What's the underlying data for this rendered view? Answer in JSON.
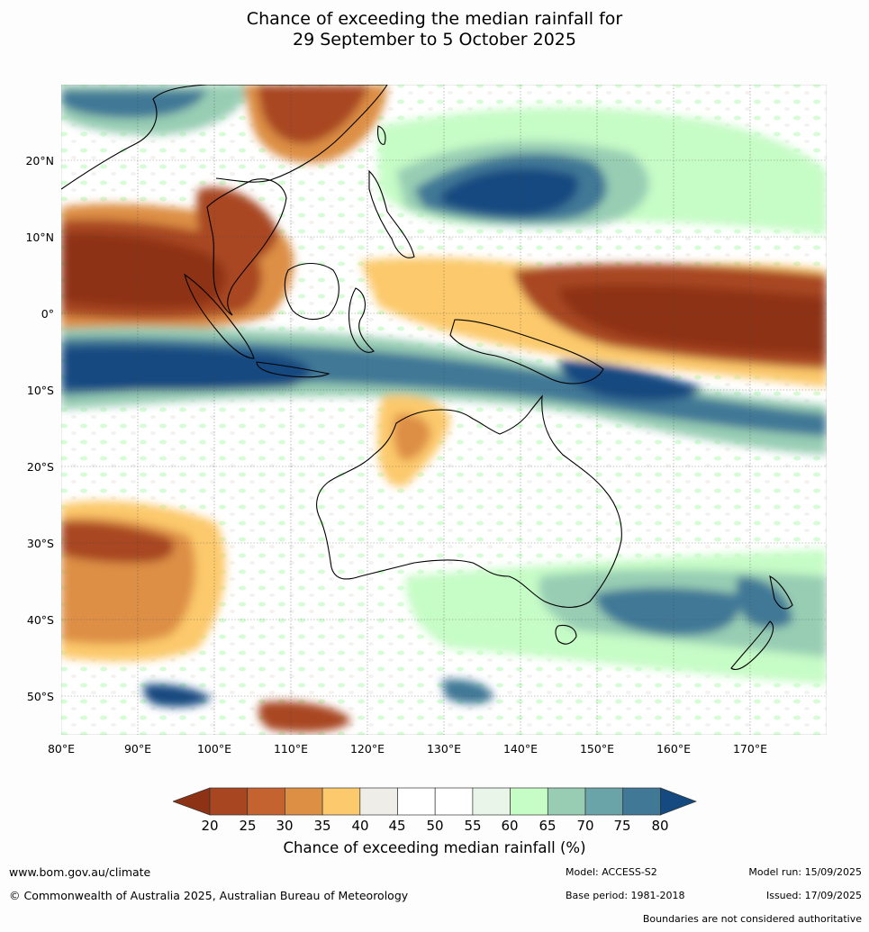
{
  "title": {
    "line1": "Chance of exceeding the median rainfall for",
    "line2": "29 September to 5 October 2025"
  },
  "lat_ticks": [
    "20°N",
    "10°N",
    "0°",
    "10°S",
    "20°S",
    "30°S",
    "40°S",
    "50°S"
  ],
  "lon_ticks": [
    "80°E",
    "90°E",
    "100°E",
    "110°E",
    "120°E",
    "130°E",
    "140°E",
    "150°E",
    "160°E",
    "170°E"
  ],
  "colorbar": {
    "labels": [
      "20",
      "25",
      "30",
      "35",
      "40",
      "45",
      "50",
      "55",
      "60",
      "65",
      "70",
      "75",
      "80"
    ],
    "title": "Chance of exceeding median rainfall (%)",
    "colors": {
      "below_20": "#8e3216",
      "20_25": "#a84622",
      "25_30": "#c46330",
      "30_35": "#dd8f44",
      "35_40": "#fcc96c",
      "40_45": "#efede8",
      "45_50": "#ffffff",
      "50_55": "#ffffff",
      "55_60": "#e9f5e8",
      "60_65": "#c6fcc6",
      "65_70": "#98cdb4",
      "70_75": "#6aa3a8",
      "75_80": "#417896",
      "above_80": "#154a80"
    }
  },
  "footer": {
    "website": "www.bom.gov.au/climate",
    "copyright": "© Commonwealth of Australia 2025, Australian Bureau of Meteorology",
    "model": "Model: ACCESS-S2",
    "base_period": "Base period: 1981-2018",
    "model_run": "Model run: 15/09/2025",
    "issued": "Issued: 17/09/2025",
    "disclaimer": "Boundaries are not considered authoritative"
  }
}
